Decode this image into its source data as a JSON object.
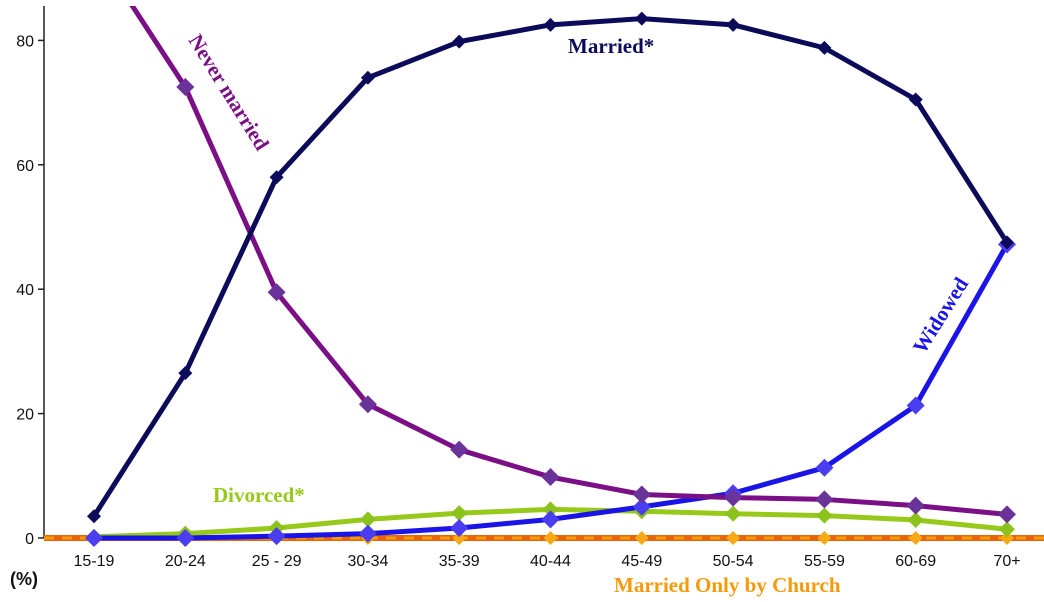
{
  "chart_data": {
    "type": "line",
    "unit_label": "(%)",
    "x_tick_labels": [
      "15-19",
      "20-24",
      "25 - 29",
      "30-34",
      "35-39",
      "40-44",
      "45-49",
      "50-54",
      "55-59",
      "60-69",
      "70+"
    ],
    "y_tick_labels": [
      "0",
      "20",
      "40",
      "60",
      "80"
    ],
    "y_ticks": [
      0,
      20,
      40,
      60,
      80
    ],
    "ylim": [
      0,
      85
    ],
    "grid": false,
    "legend": "inline labels",
    "series": [
      {
        "key": "married",
        "name": "Married*",
        "color": "#0b0b5a",
        "values": [
          3.5,
          26.5,
          58.0,
          74.0,
          79.8,
          82.5,
          83.5,
          82.5,
          78.8,
          70.5,
          47.5
        ]
      },
      {
        "key": "never_married",
        "name": "Never married",
        "color": "#7b0f86",
        "marker_color": "#6a3399",
        "values": [
          95.0,
          72.5,
          39.5,
          21.5,
          14.2,
          9.8,
          7.0,
          6.5,
          6.2,
          5.2,
          3.8
        ]
      },
      {
        "key": "widowed",
        "name": "Widowed",
        "color": "#1a14e6",
        "marker_color": "#4a3ef0",
        "values": [
          0.0,
          0.0,
          0.3,
          0.7,
          1.6,
          3.0,
          5.0,
          7.2,
          11.3,
          21.3,
          47.2
        ]
      },
      {
        "key": "divorced",
        "name": "Divorced*",
        "color": "#97c91a",
        "marker_color": "#8cc21c",
        "values": [
          0.2,
          0.7,
          1.6,
          3.0,
          4.0,
          4.6,
          4.3,
          3.9,
          3.6,
          2.9,
          1.4
        ]
      },
      {
        "key": "church",
        "name": "Married Only by Church",
        "color": "#f59a0a",
        "marker_color": "#f7a814",
        "values": [
          0.0,
          0.0,
          0.0,
          0.0,
          0.0,
          0.0,
          0.0,
          0.0,
          0.0,
          0.0,
          0.0
        ]
      }
    ]
  }
}
